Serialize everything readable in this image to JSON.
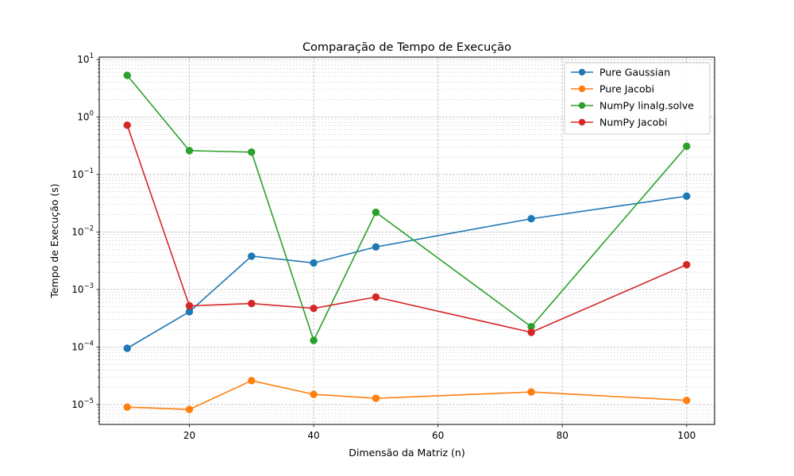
{
  "chart_data": {
    "type": "line",
    "title": "Comparação de Tempo de Execução",
    "xlabel": "Dimensão da Matriz (n)",
    "ylabel": "Tempo de Execução (s)",
    "yscale": "log",
    "xlim": [
      5.5,
      104.5
    ],
    "ylim": [
      4.5e-06,
      11
    ],
    "x_ticks": [
      20,
      40,
      60,
      80,
      100
    ],
    "y_ticks": [
      {
        "value": 1e-05,
        "base": "10",
        "exp": "−5"
      },
      {
        "value": 0.0001,
        "base": "10",
        "exp": "−4"
      },
      {
        "value": 0.001,
        "base": "10",
        "exp": "−3"
      },
      {
        "value": 0.01,
        "base": "10",
        "exp": "−2"
      },
      {
        "value": 0.1,
        "base": "10",
        "exp": "−1"
      },
      {
        "value": 1,
        "base": "10",
        "exp": "0"
      },
      {
        "value": 10,
        "base": "10",
        "exp": "1"
      }
    ],
    "grid": true,
    "legend_position": "top-right",
    "x": [
      10,
      20,
      30,
      40,
      50,
      75,
      100
    ],
    "series": [
      {
        "name": "Pure Gaussian",
        "color": "#1f77b4",
        "values": [
          9.5e-05,
          0.00041,
          0.0038,
          0.0029,
          0.0055,
          0.017,
          0.042
        ]
      },
      {
        "name": "Pure Jacobi",
        "color": "#ff7f0e",
        "values": [
          9e-06,
          8.2e-06,
          2.6e-05,
          1.5e-05,
          1.28e-05,
          1.65e-05,
          1.18e-05
        ]
      },
      {
        "name": "NumPy linalg.solve",
        "color": "#2ca02c",
        "values": [
          5.3,
          0.26,
          0.245,
          0.00013,
          0.022,
          0.000225,
          0.31
        ]
      },
      {
        "name": "NumPy Jacobi",
        "color": "#d62728",
        "values": [
          0.72,
          0.00052,
          0.00057,
          0.00047,
          0.00074,
          0.00018,
          0.0027
        ]
      }
    ]
  }
}
